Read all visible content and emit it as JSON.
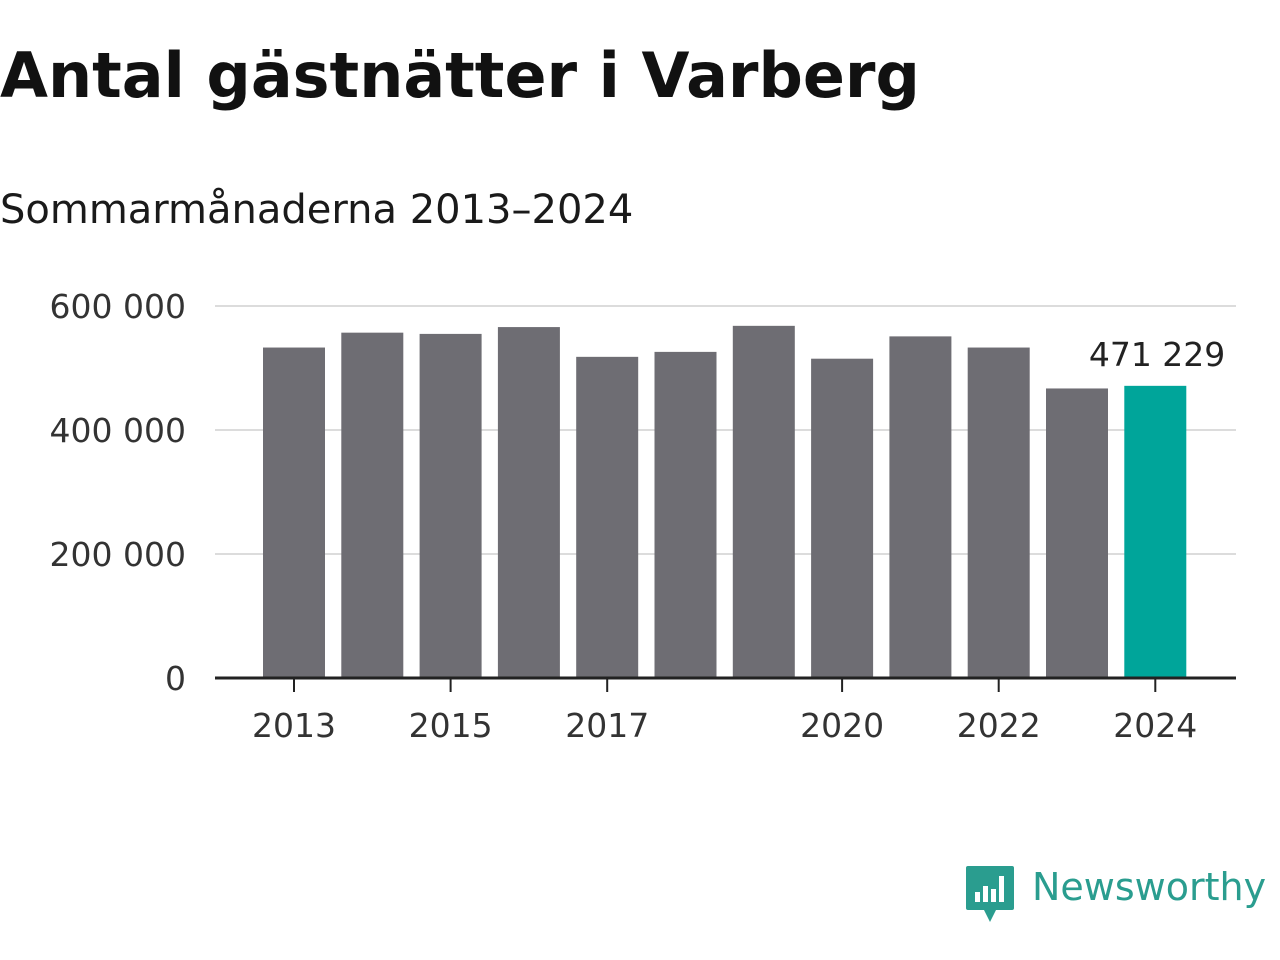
{
  "header": {
    "title": "Antal gästnätter i Varberg",
    "subtitle": "Sommarmånaderna 2013–2024"
  },
  "brand": {
    "name": "Newsworthy",
    "color": "#2a9d8f",
    "icon": "newsworthy-logo-icon"
  },
  "colors": {
    "bar": "#6e6d73",
    "highlight": "#00a59a",
    "grid": "#dcdcdc",
    "axis": "#222222",
    "text": "#333333"
  },
  "chart_data": {
    "type": "bar",
    "title": "Antal gästnätter i Varberg",
    "subtitle": "Sommarmånaderna 2013–2024",
    "xlabel": "",
    "ylabel": "",
    "categories": [
      "2013",
      "2014",
      "2015",
      "2016",
      "2017",
      "2018",
      "2019",
      "2020",
      "2021",
      "2022",
      "2023",
      "2024"
    ],
    "values": [
      533000,
      557000,
      555000,
      566000,
      518000,
      526000,
      568000,
      515000,
      551000,
      533000,
      467000,
      471229
    ],
    "highlight_index": 11,
    "highlight_label": "471 229",
    "ylim": [
      0,
      600000
    ],
    "yticks": [
      0,
      200000,
      400000,
      600000
    ],
    "ytick_labels": [
      "0",
      "200 000",
      "400 000",
      "600 000"
    ],
    "xtick_labels": [
      "2013",
      "2015",
      "2017",
      "2020",
      "2022",
      "2024"
    ],
    "grid": true,
    "legend": "none"
  }
}
